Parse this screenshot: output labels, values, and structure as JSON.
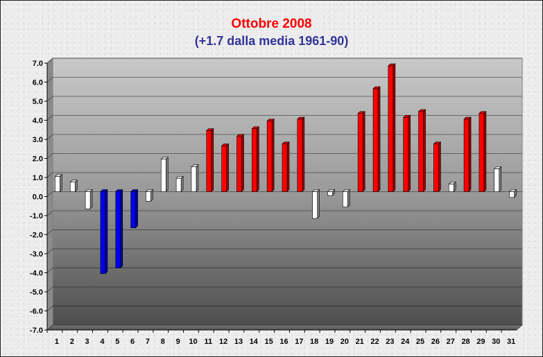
{
  "chart_data": {
    "type": "bar",
    "title": "Ottobre 2008",
    "subtitle": "(+1.7 dalla media 1961-90)",
    "xlabel": "",
    "ylabel": "",
    "ylim": [
      -7.0,
      7.0
    ],
    "ytick_step": 1.0,
    "categories": [
      "1",
      "2",
      "3",
      "4",
      "5",
      "6",
      "7",
      "8",
      "9",
      "10",
      "11",
      "12",
      "13",
      "14",
      "15",
      "16",
      "17",
      "18",
      "19",
      "20",
      "21",
      "22",
      "23",
      "24",
      "25",
      "26",
      "27",
      "28",
      "29",
      "30",
      "31"
    ],
    "values": [
      0.8,
      0.5,
      -0.9,
      -4.3,
      -4.0,
      -1.9,
      -0.5,
      1.7,
      0.7,
      1.3,
      3.2,
      2.4,
      2.9,
      3.3,
      3.7,
      2.5,
      3.8,
      -1.4,
      -0.2,
      -0.8,
      4.1,
      5.4,
      6.6,
      3.9,
      4.2,
      2.5,
      0.4,
      3.8,
      4.1,
      1.2,
      -0.3
    ],
    "grid": true,
    "colors": {
      "warm": "#ff0000",
      "cold": "#0000ee",
      "neutral": "#ffffff",
      "title": "#ff0000",
      "subtitle": "#333399"
    },
    "color_rule": {
      "warm_at_or_above": 2.0,
      "cold_at_or_below": -1.5
    }
  }
}
